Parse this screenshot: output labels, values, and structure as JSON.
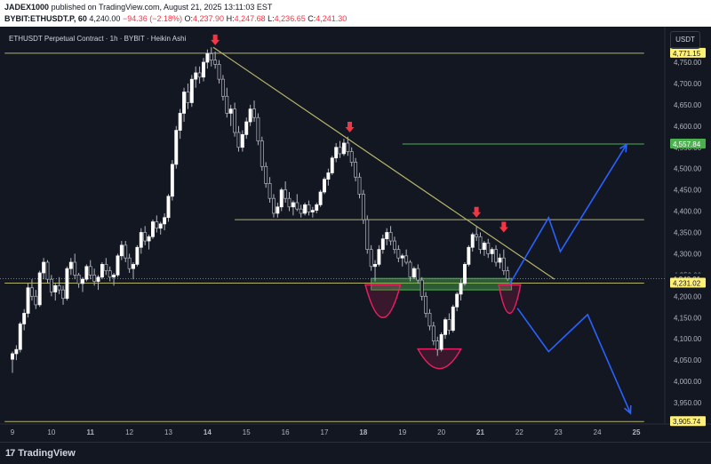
{
  "publish_info": {
    "author": "JADEX1000",
    "text": "published on TradingView.com, August 21, 2025 13:11:03 EST"
  },
  "ohlc_header": {
    "symbol": "BYBIT:ETHUSDT.P, 60",
    "last": "4,240.00",
    "change": "−94.36 (−2.18%)",
    "open_label": "O:",
    "open": "4,237.90",
    "high_label": "H:",
    "high": "4,247.68",
    "low_label": "L:",
    "low": "4,236.65",
    "close_label": "C:",
    "close": "4,241.30"
  },
  "legend": "ETHUSDT Perpetual Contract · 1h · BYBIT · Heikin Ashi",
  "currency_button": "USDT",
  "branding": {
    "name": "TradingView"
  },
  "colors": {
    "background": "#131722",
    "candle": "#ffffff",
    "level_line": "#b5b36a",
    "trendline": "#b5b36a",
    "green_level": "#4caf50",
    "projection": "#2962ff",
    "marker": "#f23645",
    "zone": "#4caf50",
    "arc": "#e91e63"
  },
  "chart_data": {
    "type": "candlestick",
    "title": "ETHUSDT Perpetual Contract · 1h · BYBIT · Heikin Ashi",
    "x_ticks": [
      "9",
      "10",
      "11",
      "12",
      "13",
      "14",
      "15",
      "16",
      "17",
      "18",
      "19",
      "20",
      "21",
      "22",
      "23",
      "24",
      "25"
    ],
    "x_ticks_bold": [
      "11",
      "14",
      "18",
      "21",
      "25"
    ],
    "y_ticks": [
      3950,
      4000,
      4050,
      4100,
      4150,
      4200,
      4250,
      4300,
      4350,
      4400,
      4450,
      4500,
      4550,
      4600,
      4650,
      4700,
      4750
    ],
    "y_tick_labels": [
      "3,950.00",
      "4,000.00",
      "4,050.00",
      "4,100.00",
      "4,150.00",
      "4,200.00",
      "4,250.00",
      "4,300.00",
      "4,350.00",
      "4,400.00",
      "4,450.00",
      "4,500.00",
      "4,550.00",
      "4,600.00",
      "4,650.00",
      "4,700.00",
      "4,750.00"
    ],
    "ylim": [
      3890,
      4795
    ],
    "xlim": [
      8.8,
      25.2
    ],
    "price_labels": [
      {
        "value": 4771.15,
        "text": "4,771.15",
        "style": "yellow"
      },
      {
        "value": 4557.84,
        "text": "4,557.84",
        "style": "green"
      },
      {
        "value": 4241.3,
        "text": "4,241.30",
        "style": "plain"
      },
      {
        "value": 4234.5,
        "text": "48:58",
        "style": "plain"
      },
      {
        "value": 4240.01,
        "text": "4,240.01",
        "style": "plain"
      },
      {
        "value": 4231.02,
        "text": "4,231.02",
        "style": "yellow"
      },
      {
        "value": 3905.74,
        "text": "3,905.74",
        "style": "yellow"
      }
    ],
    "levels": [
      {
        "price": 4771.15,
        "from_day": 8.8,
        "to_day": 25.2,
        "color": "level"
      },
      {
        "price": 4557.84,
        "from_day": 19.0,
        "to_day": 25.2,
        "color": "green"
      },
      {
        "price": 4380.0,
        "from_day": 14.7,
        "to_day": 25.2,
        "color": "level"
      },
      {
        "price": 4231.02,
        "from_day": 8.8,
        "to_day": 25.2,
        "color": "level"
      },
      {
        "price": 3905.74,
        "from_day": 8.8,
        "to_day": 25.2,
        "color": "level"
      }
    ],
    "trendline": [
      {
        "day": 14.15,
        "price": 4785
      },
      {
        "day": 22.9,
        "price": 4240
      }
    ],
    "support_zone": {
      "from_day": 18.2,
      "to_day": 21.8,
      "top": 4242,
      "bottom": 4215
    },
    "arcs": [
      {
        "center_day": 18.5,
        "top": 4227,
        "bottom": 4150,
        "half_width_days": 0.45
      },
      {
        "center_day": 19.95,
        "top": 4076,
        "bottom": 4030,
        "half_width_days": 0.55
      },
      {
        "center_day": 21.75,
        "top": 4227,
        "bottom": 4160,
        "half_width_days": 0.28
      }
    ],
    "markers": [
      {
        "day": 14.2,
        "price": 4790
      },
      {
        "day": 17.65,
        "price": 4585
      },
      {
        "day": 20.9,
        "price": 4385
      },
      {
        "day": 21.6,
        "price": 4350
      }
    ],
    "projections": [
      {
        "points": [
          [
            21.75,
            4228
          ],
          [
            22.75,
            4385
          ],
          [
            23.05,
            4305
          ],
          [
            24.75,
            4557
          ]
        ]
      },
      {
        "points": [
          [
            21.95,
            4172
          ],
          [
            22.75,
            4070
          ],
          [
            23.75,
            4157
          ],
          [
            24.85,
            3925
          ]
        ]
      }
    ],
    "candles": [
      [
        9.0,
        4052,
        4070,
        4020,
        4065
      ],
      [
        9.1,
        4065,
        4085,
        4050,
        4075
      ],
      [
        9.2,
        4075,
        4140,
        4068,
        4135
      ],
      [
        9.3,
        4135,
        4170,
        4120,
        4160
      ],
      [
        9.4,
        4160,
        4230,
        4150,
        4220
      ],
      [
        9.5,
        4220,
        4240,
        4190,
        4200
      ],
      [
        9.6,
        4200,
        4215,
        4170,
        4180
      ],
      [
        9.7,
        4180,
        4260,
        4175,
        4255
      ],
      [
        9.8,
        4255,
        4290,
        4240,
        4280
      ],
      [
        9.9,
        4280,
        4285,
        4230,
        4240
      ],
      [
        10.0,
        4240,
        4250,
        4200,
        4210
      ],
      [
        10.1,
        4210,
        4230,
        4190,
        4225
      ],
      [
        10.2,
        4225,
        4245,
        4205,
        4215
      ],
      [
        10.3,
        4215,
        4225,
        4180,
        4195
      ],
      [
        10.4,
        4195,
        4270,
        4190,
        4265
      ],
      [
        10.5,
        4265,
        4290,
        4250,
        4280
      ],
      [
        10.6,
        4280,
        4300,
        4240,
        4250
      ],
      [
        10.7,
        4250,
        4255,
        4220,
        4230
      ],
      [
        10.8,
        4230,
        4245,
        4210,
        4240
      ],
      [
        10.9,
        4240,
        4275,
        4235,
        4270
      ],
      [
        11.0,
        4270,
        4285,
        4240,
        4250
      ],
      [
        11.1,
        4250,
        4265,
        4225,
        4235
      ],
      [
        11.2,
        4235,
        4250,
        4215,
        4245
      ],
      [
        11.3,
        4245,
        4280,
        4240,
        4275
      ],
      [
        11.4,
        4275,
        4290,
        4250,
        4260
      ],
      [
        11.5,
        4260,
        4270,
        4235,
        4245
      ],
      [
        11.6,
        4245,
        4255,
        4225,
        4250
      ],
      [
        11.7,
        4250,
        4300,
        4245,
        4295
      ],
      [
        11.8,
        4295,
        4330,
        4285,
        4320
      ],
      [
        11.9,
        4320,
        4330,
        4280,
        4290
      ],
      [
        12.0,
        4290,
        4300,
        4255,
        4265
      ],
      [
        12.1,
        4265,
        4280,
        4240,
        4275
      ],
      [
        12.2,
        4275,
        4320,
        4270,
        4315
      ],
      [
        12.3,
        4315,
        4360,
        4300,
        4350
      ],
      [
        12.4,
        4350,
        4365,
        4320,
        4330
      ],
      [
        12.5,
        4330,
        4345,
        4310,
        4340
      ],
      [
        12.6,
        4340,
        4380,
        4335,
        4375
      ],
      [
        12.7,
        4375,
        4390,
        4350,
        4360
      ],
      [
        12.8,
        4360,
        4375,
        4345,
        4370
      ],
      [
        12.9,
        4370,
        4395,
        4355,
        4385
      ],
      [
        13.0,
        4385,
        4440,
        4375,
        4435
      ],
      [
        13.1,
        4435,
        4520,
        4425,
        4510
      ],
      [
        13.2,
        4510,
        4600,
        4500,
        4590
      ],
      [
        13.3,
        4590,
        4640,
        4570,
        4630
      ],
      [
        13.4,
        4630,
        4690,
        4610,
        4680
      ],
      [
        13.5,
        4680,
        4700,
        4640,
        4655
      ],
      [
        13.6,
        4655,
        4720,
        4645,
        4710
      ],
      [
        13.7,
        4710,
        4740,
        4690,
        4725
      ],
      [
        13.8,
        4725,
        4740,
        4700,
        4715
      ],
      [
        13.9,
        4715,
        4760,
        4705,
        4750
      ],
      [
        14.0,
        4750,
        4780,
        4735,
        4770
      ],
      [
        14.1,
        4770,
        4785,
        4740,
        4755
      ],
      [
        14.2,
        4755,
        4775,
        4735,
        4745
      ],
      [
        14.3,
        4745,
        4755,
        4700,
        4710
      ],
      [
        14.4,
        4710,
        4720,
        4660,
        4670
      ],
      [
        14.5,
        4670,
        4690,
        4620,
        4630
      ],
      [
        14.6,
        4630,
        4650,
        4600,
        4640
      ],
      [
        14.7,
        4640,
        4655,
        4575,
        4585
      ],
      [
        14.8,
        4585,
        4600,
        4540,
        4550
      ],
      [
        14.9,
        4550,
        4590,
        4540,
        4580
      ],
      [
        15.0,
        4580,
        4620,
        4570,
        4610
      ],
      [
        15.1,
        4610,
        4650,
        4600,
        4640
      ],
      [
        15.2,
        4640,
        4660,
        4610,
        4620
      ],
      [
        15.3,
        4620,
        4630,
        4555,
        4565
      ],
      [
        15.4,
        4565,
        4575,
        4495,
        4505
      ],
      [
        15.5,
        4505,
        4515,
        4455,
        4465
      ],
      [
        15.6,
        4465,
        4480,
        4420,
        4430
      ],
      [
        15.7,
        4430,
        4440,
        4385,
        4395
      ],
      [
        15.8,
        4395,
        4420,
        4385,
        4410
      ],
      [
        15.9,
        4410,
        4455,
        4400,
        4450
      ],
      [
        16.0,
        4450,
        4470,
        4420,
        4430
      ],
      [
        16.1,
        4430,
        4445,
        4400,
        4410
      ],
      [
        16.2,
        4410,
        4425,
        4390,
        4420
      ],
      [
        16.3,
        4420,
        4440,
        4400,
        4405
      ],
      [
        16.4,
        4405,
        4415,
        4385,
        4395
      ],
      [
        16.5,
        4395,
        4420,
        4390,
        4415
      ],
      [
        16.6,
        4415,
        4425,
        4390,
        4398
      ],
      [
        16.7,
        4398,
        4410,
        4385,
        4402
      ],
      [
        16.8,
        4402,
        4420,
        4395,
        4415
      ],
      [
        16.9,
        4415,
        4450,
        4410,
        4445
      ],
      [
        17.0,
        4445,
        4480,
        4440,
        4475
      ],
      [
        17.1,
        4475,
        4500,
        4460,
        4490
      ],
      [
        17.2,
        4490,
        4530,
        4485,
        4525
      ],
      [
        17.3,
        4525,
        4560,
        4515,
        4550
      ],
      [
        17.4,
        4550,
        4565,
        4525,
        4535
      ],
      [
        17.5,
        4535,
        4570,
        4530,
        4560
      ],
      [
        17.6,
        4560,
        4575,
        4530,
        4540
      ],
      [
        17.7,
        4540,
        4550,
        4505,
        4515
      ],
      [
        17.8,
        4515,
        4525,
        4470,
        4480
      ],
      [
        17.9,
        4480,
        4490,
        4430,
        4440
      ],
      [
        18.0,
        4440,
        4450,
        4370,
        4380
      ],
      [
        18.1,
        4380,
        4390,
        4300,
        4310
      ],
      [
        18.2,
        4310,
        4320,
        4260,
        4270
      ],
      [
        18.3,
        4270,
        4285,
        4235,
        4275
      ],
      [
        18.4,
        4275,
        4320,
        4270,
        4310
      ],
      [
        18.5,
        4310,
        4345,
        4300,
        4335
      ],
      [
        18.6,
        4335,
        4360,
        4320,
        4350
      ],
      [
        18.7,
        4350,
        4365,
        4320,
        4330
      ],
      [
        18.8,
        4330,
        4340,
        4300,
        4310
      ],
      [
        18.9,
        4310,
        4320,
        4280,
        4290
      ],
      [
        19.0,
        4290,
        4300,
        4270,
        4295
      ],
      [
        19.1,
        4295,
        4310,
        4275,
        4280
      ],
      [
        19.2,
        4280,
        4285,
        4235,
        4245
      ],
      [
        19.3,
        4245,
        4270,
        4240,
        4265
      ],
      [
        19.4,
        4265,
        4275,
        4230,
        4238
      ],
      [
        19.5,
        4238,
        4245,
        4190,
        4200
      ],
      [
        19.6,
        4200,
        4210,
        4150,
        4160
      ],
      [
        19.7,
        4160,
        4170,
        4120,
        4130
      ],
      [
        19.8,
        4130,
        4140,
        4085,
        4095
      ],
      [
        19.9,
        4095,
        4105,
        4060,
        4075
      ],
      [
        20.0,
        4075,
        4115,
        4070,
        4110
      ],
      [
        20.1,
        4110,
        4150,
        4100,
        4145
      ],
      [
        20.2,
        4145,
        4160,
        4110,
        4120
      ],
      [
        20.3,
        4120,
        4180,
        4115,
        4175
      ],
      [
        20.4,
        4175,
        4210,
        4165,
        4205
      ],
      [
        20.5,
        4205,
        4240,
        4190,
        4230
      ],
      [
        20.6,
        4230,
        4280,
        4225,
        4275
      ],
      [
        20.7,
        4275,
        4320,
        4270,
        4315
      ],
      [
        20.8,
        4315,
        4350,
        4305,
        4345
      ],
      [
        20.9,
        4345,
        4365,
        4330,
        4340
      ],
      [
        21.0,
        4340,
        4350,
        4300,
        4310
      ],
      [
        21.1,
        4310,
        4330,
        4295,
        4325
      ],
      [
        21.2,
        4325,
        4335,
        4290,
        4300
      ],
      [
        21.3,
        4300,
        4315,
        4280,
        4310
      ],
      [
        21.4,
        4310,
        4320,
        4270,
        4280
      ],
      [
        21.5,
        4280,
        4300,
        4265,
        4290
      ],
      [
        21.6,
        4290,
        4310,
        4250,
        4260
      ],
      [
        21.7,
        4260,
        4270,
        4236,
        4241
      ]
    ]
  }
}
